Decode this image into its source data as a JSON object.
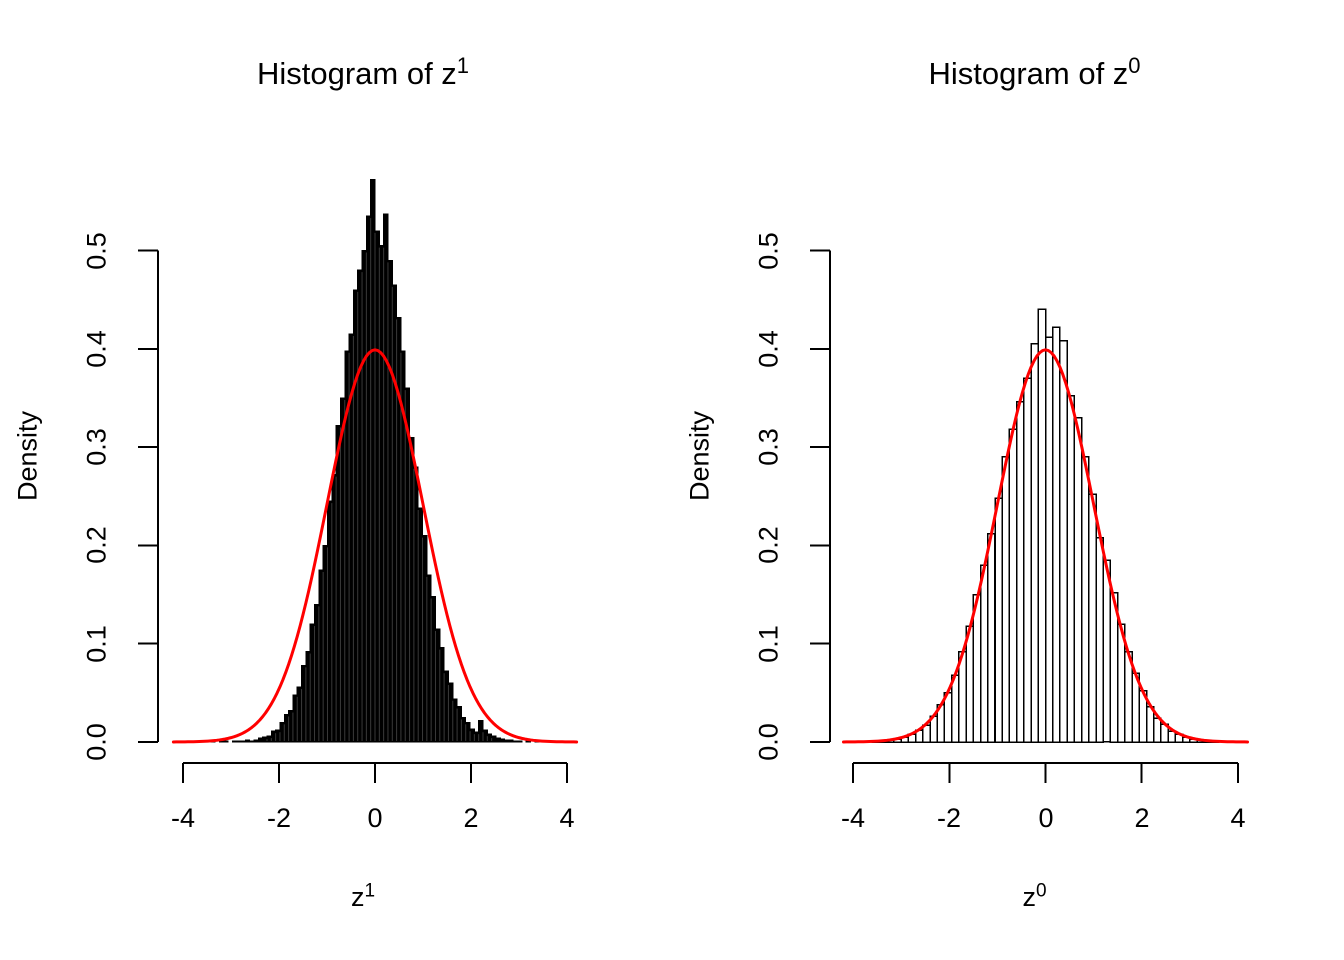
{
  "figure": {
    "background": "#ffffff",
    "text_color": "#000000"
  },
  "chart_data": [
    {
      "type": "histogram",
      "title": {
        "prefix": "Histogram of z",
        "sup": "1"
      },
      "xlabel": {
        "prefix": "z",
        "sup": "1"
      },
      "ylabel": "Density",
      "x_ticks": [
        {
          "label": "-4",
          "value": -4
        },
        {
          "label": "-2",
          "value": -2
        },
        {
          "label": "0",
          "value": 0
        },
        {
          "label": "2",
          "value": 2
        },
        {
          "label": "4",
          "value": 4
        }
      ],
      "y_ticks": [
        {
          "label": "0.0",
          "value": 0.0
        },
        {
          "label": "0.1",
          "value": 0.1
        },
        {
          "label": "0.2",
          "value": 0.2
        },
        {
          "label": "0.3",
          "value": 0.3
        },
        {
          "label": "0.4",
          "value": 0.4
        },
        {
          "label": "0.5",
          "value": 0.5
        }
      ],
      "xlim": [
        -4.2,
        4.2
      ],
      "ylim": [
        0,
        0.5
      ],
      "grid": false,
      "bins": {
        "start": -3.6,
        "width": 0.09
      },
      "densities": [
        0.001,
        0,
        0.001,
        0,
        0.001,
        0.001,
        0,
        0.001,
        0.001,
        0.001,
        0.002,
        0.001,
        0.002,
        0.004,
        0.005,
        0.006,
        0.011,
        0.012,
        0.02,
        0.028,
        0.032,
        0.048,
        0.056,
        0.078,
        0.092,
        0.12,
        0.14,
        0.175,
        0.2,
        0.245,
        0.272,
        0.322,
        0.35,
        0.398,
        0.415,
        0.46,
        0.48,
        0.5,
        0.535,
        0.572,
        0.52,
        0.505,
        0.537,
        0.49,
        0.465,
        0.432,
        0.398,
        0.36,
        0.31,
        0.28,
        0.238,
        0.21,
        0.17,
        0.148,
        0.115,
        0.096,
        0.072,
        0.06,
        0.044,
        0.036,
        0.025,
        0.02,
        0.013,
        0.01,
        0.022,
        0.012,
        0.008,
        0.006,
        0.004,
        0.003,
        0.002,
        0.002,
        0.001,
        0.001,
        0,
        0.001,
        0,
        0.001,
        0,
        0.001
      ],
      "bar_style": {
        "fill": "#000000",
        "stroke": "#000000",
        "separator": "#3a3a3a"
      },
      "curve": {
        "shape": "normal-density",
        "mean": 0,
        "sd": 1,
        "peak": 0.3989,
        "range": [
          -4.2,
          4.2
        ],
        "color": "#ff0000"
      }
    },
    {
      "type": "histogram",
      "title": {
        "prefix": "Histogram of z",
        "sup": "0"
      },
      "xlabel": {
        "prefix": "z",
        "sup": "0"
      },
      "ylabel": "Density",
      "x_ticks": [
        {
          "label": "-4",
          "value": -4
        },
        {
          "label": "-2",
          "value": -2
        },
        {
          "label": "0",
          "value": 0
        },
        {
          "label": "2",
          "value": 2
        },
        {
          "label": "4",
          "value": 4
        }
      ],
      "y_ticks": [
        {
          "label": "0.0",
          "value": 0.0
        },
        {
          "label": "0.1",
          "value": 0.1
        },
        {
          "label": "0.2",
          "value": 0.2
        },
        {
          "label": "0.3",
          "value": 0.3
        },
        {
          "label": "0.4",
          "value": 0.4
        },
        {
          "label": "0.5",
          "value": 0.5
        }
      ],
      "xlim": [
        -4.2,
        4.2
      ],
      "ylim": [
        0,
        0.5
      ],
      "grid": false,
      "bins": {
        "start": -3.6,
        "width": 0.15
      },
      "densities": [
        0.001,
        0.001,
        0.002,
        0.003,
        0.005,
        0.008,
        0.012,
        0.017,
        0.026,
        0.038,
        0.05,
        0.068,
        0.092,
        0.118,
        0.15,
        0.18,
        0.212,
        0.248,
        0.29,
        0.318,
        0.346,
        0.37,
        0.405,
        0.44,
        0.412,
        0.422,
        0.408,
        0.352,
        0.33,
        0.29,
        0.252,
        0.208,
        0.185,
        0.152,
        0.12,
        0.092,
        0.07,
        0.052,
        0.036,
        0.024,
        0.018,
        0.011,
        0.008,
        0.005,
        0.003,
        0.002,
        0.001,
        0.001
      ],
      "bar_style": {
        "fill": "#ffffff",
        "stroke": "#000000"
      },
      "curve": {
        "shape": "normal-density",
        "mean": 0,
        "sd": 1,
        "peak": 0.3989,
        "range": [
          -4.2,
          4.2
        ],
        "color": "#ff0000"
      }
    }
  ]
}
